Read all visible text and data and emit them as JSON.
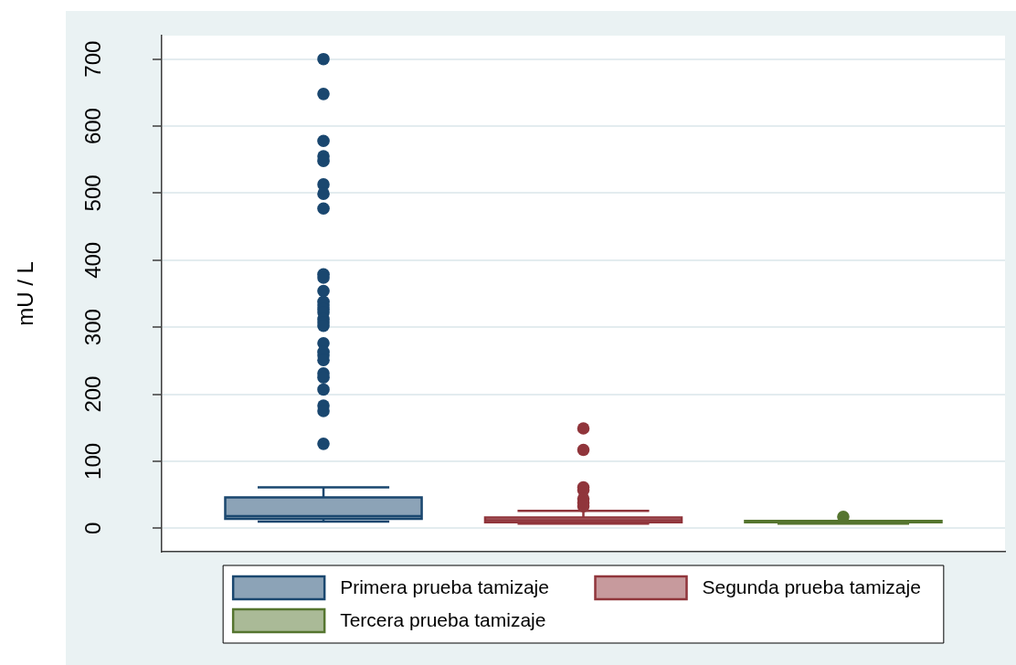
{
  "chart_data": {
    "type": "box",
    "ylabel": "mU / L",
    "categories": [
      null
    ],
    "series": [
      {
        "name": "Primera prueba tamizaje",
        "color": "#1a476f",
        "boxes": [
          {
            "low": 10,
            "q1": 14,
            "median": 18,
            "q3": 46,
            "high": 61,
            "outliers": [
              700,
              648,
              578,
              555,
              548,
              513,
              499,
              477,
              379,
              374,
              354,
              338,
              333,
              327,
              322,
              312,
              307,
              302,
              276,
              263,
              258,
              251,
              231,
              225,
              207,
              183,
              175,
              126
            ]
          }
        ]
      },
      {
        "name": "Segunda prueba tamizaje",
        "color": "#90353b",
        "boxes": [
          {
            "low": 7,
            "q1": 9,
            "median": 12,
            "q3": 16,
            "high": 26,
            "outliers": [
              149,
              117,
              61,
              57,
              44,
              38,
              33
            ]
          }
        ]
      },
      {
        "name": "Tercera prueba tamizaje",
        "color": "#55752f",
        "boxes": [
          {
            "low": 7,
            "q1": 9,
            "median": 10,
            "q3": 11,
            "high": 11,
            "outliers": [
              17
            ]
          }
        ]
      }
    ],
    "ylim": [
      -35,
      735
    ],
    "yticks": [
      0,
      100,
      200,
      300,
      400,
      500,
      600,
      700
    ],
    "grid": "y",
    "legend": "bottom",
    "marker": "circle"
  }
}
